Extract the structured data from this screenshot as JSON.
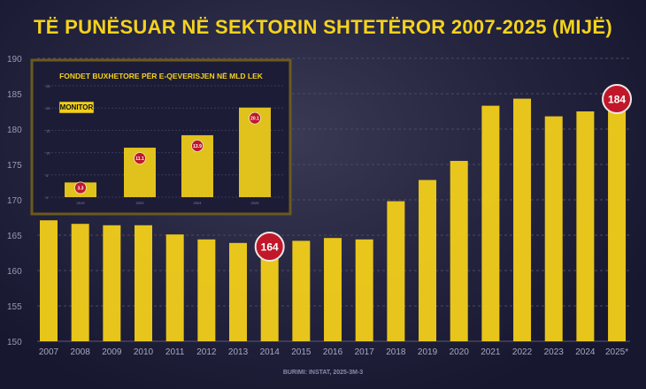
{
  "title": "TË PUNËSUAR NË SEKTORIN SHTETËROR 2007-2025 (MIJË)",
  "source": "BURIMI: INSTAT, 2025-3M-3",
  "colors": {
    "bar": "#f2cf1a",
    "badge": "#c0182a",
    "background": "#17172f",
    "title": "#f5d21c"
  },
  "chart_data": [
    {
      "type": "bar",
      "title": "TË PUNËSUAR NË SEKTORIN SHTETËROR 2007-2025 (MIJË)",
      "categories": [
        "2007",
        "2008",
        "2009",
        "2010",
        "2011",
        "2012",
        "2013",
        "2014",
        "2015",
        "2016",
        "2017",
        "2018",
        "2019",
        "2020",
        "2021",
        "2022",
        "2023",
        "2024",
        "2025*"
      ],
      "values": [
        167.1,
        166.6,
        166.4,
        166.4,
        165.1,
        164.4,
        163.9,
        164,
        164.2,
        164.6,
        164.4,
        169.8,
        172.8,
        175.5,
        183.3,
        184.3,
        181.8,
        182.5,
        184
      ],
      "data_labels": {
        "2014": "164",
        "2025*": "184"
      },
      "ylim": [
        150,
        190
      ],
      "yticks": [
        150,
        155,
        160,
        165,
        170,
        175,
        180,
        185,
        190
      ],
      "grid": true,
      "xlabel": "",
      "ylabel": ""
    },
    {
      "type": "bar",
      "title": "FONDET  BUXHETORE PËR E-QEVERISJEN NË MLD LEK",
      "logo": "MONITOR",
      "categories": [
        "2019",
        "2023",
        "2024",
        "2025"
      ],
      "values": [
        3.3,
        11.1,
        13.9,
        20.1
      ],
      "data_labels": [
        "3.3",
        "11.1",
        "13.9",
        "20.1"
      ],
      "ylim": [
        0,
        25
      ],
      "yticks": [
        0,
        5,
        10,
        15,
        20,
        25
      ],
      "grid": true
    }
  ]
}
